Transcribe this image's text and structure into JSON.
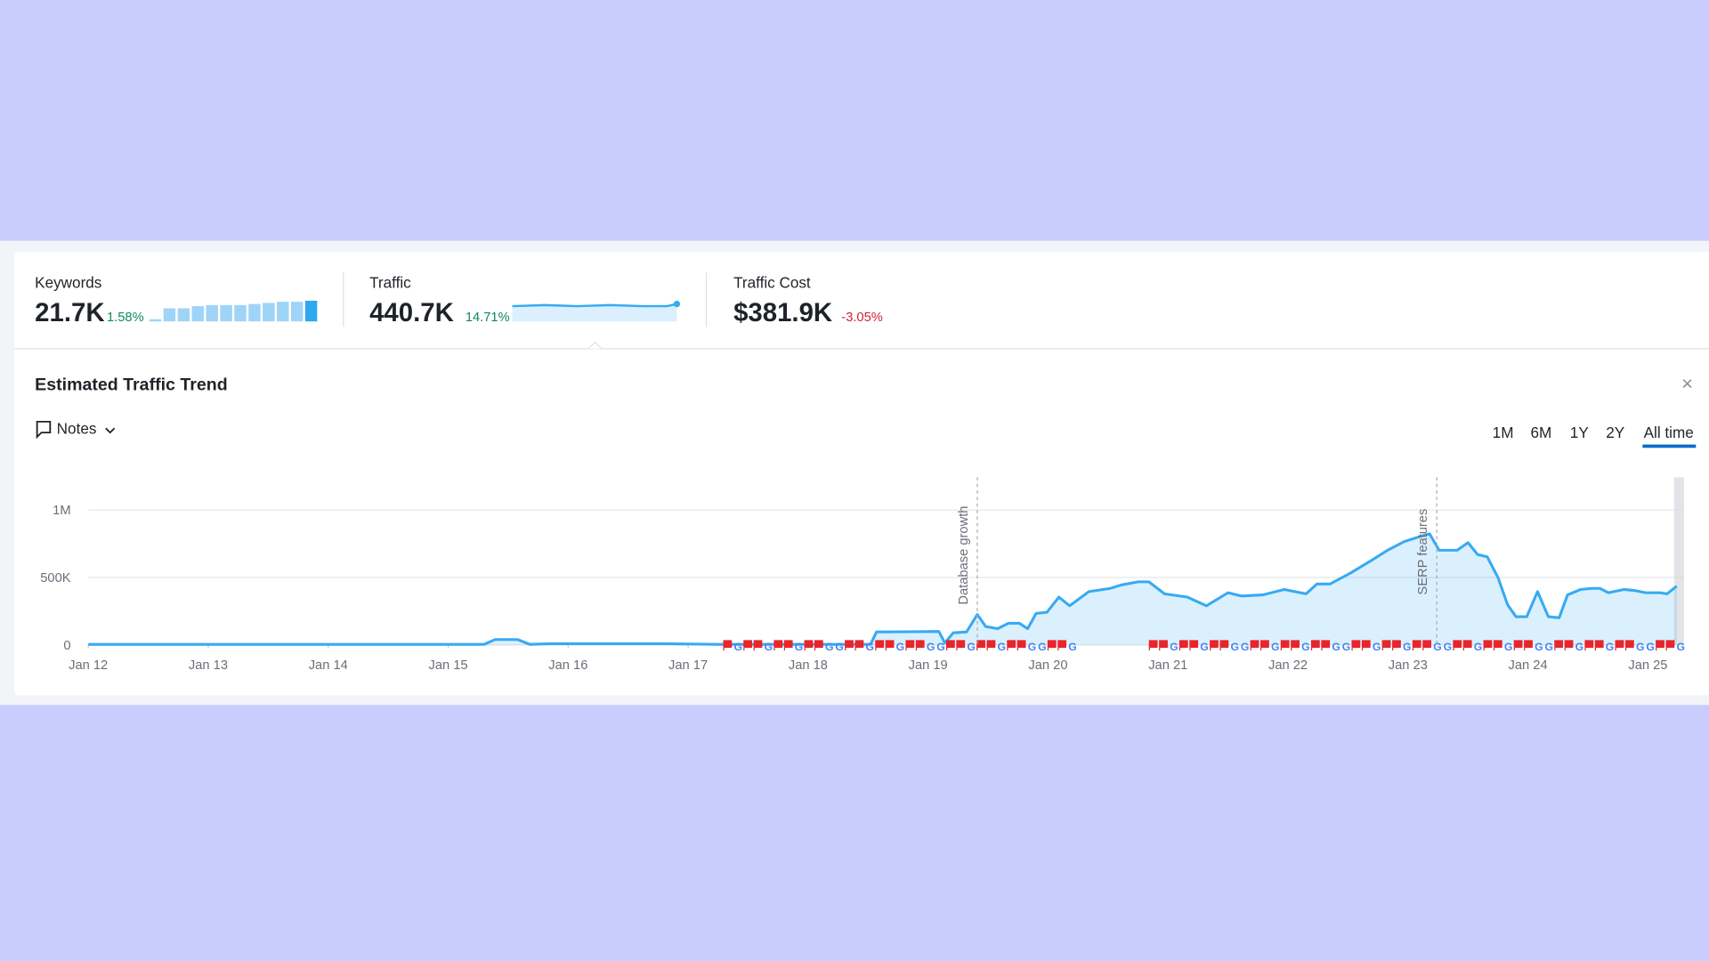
{
  "metrics": [
    {
      "label": "Keywords",
      "value": "21.7K",
      "change": "1.58%"
    },
    {
      "label": "Traffic",
      "value": "440.7K",
      "change": "14.71%"
    },
    {
      "label": "Traffic Cost",
      "value": "$381.9K",
      "change": "-3.05%"
    }
  ],
  "panel": {
    "title": "Estimated Traffic Trend",
    "notes": "Notes",
    "close": "×",
    "ranges": [
      "1M",
      "6M",
      "1Y",
      "2Y",
      "All time"
    ]
  },
  "chart_data": {
    "type": "area",
    "grid": true,
    "xlim": [
      2012,
      2025.3
    ],
    "ylim": [
      0,
      1000000
    ],
    "xticks": [
      {
        "value": 2012,
        "label": "Jan 12"
      },
      {
        "value": 2013,
        "label": "Jan 13"
      },
      {
        "value": 2014,
        "label": "Jan 14"
      },
      {
        "value": 2015,
        "label": "Jan 15"
      },
      {
        "value": 2016,
        "label": "Jan 16"
      },
      {
        "value": 2017,
        "label": "Jan 17"
      },
      {
        "value": 2018,
        "label": "Jan 18"
      },
      {
        "value": 2019,
        "label": "Jan 19"
      },
      {
        "value": 2020,
        "label": "Jan 20"
      },
      {
        "value": 2021,
        "label": "Jan 21"
      },
      {
        "value": 2022,
        "label": "Jan 22"
      },
      {
        "value": 2023,
        "label": "Jan 23"
      },
      {
        "value": 2024,
        "label": "Jan 24"
      },
      {
        "value": 2025,
        "label": "Jan 25"
      }
    ],
    "yticks": [
      0,
      {
        "value": 500000,
        "label": "500K"
      },
      {
        "value": 1000000,
        "label": "1M"
      }
    ],
    "annotations": [
      {
        "text": "Database growth",
        "x": 2019.41
      },
      {
        "text": "SERP features",
        "x": 2023.24
      }
    ],
    "series": [
      {
        "color": "#36aaf3",
        "x": [
          2012.0,
          2015.3,
          2015.39,
          2015.58,
          2015.68,
          2015.85,
          2016.8,
          2017.25,
          2018.52,
          2018.57,
          2019.09,
          2019.14,
          2019.21,
          2019.32,
          2019.41,
          2019.48,
          2019.58,
          2019.67,
          2019.76,
          2019.83,
          2019.9,
          2019.99,
          2020.09,
          2020.18,
          2020.34,
          2020.52,
          2020.61,
          2020.75,
          2020.84,
          2020.97,
          2021.16,
          2021.32,
          2021.5,
          2021.61,
          2021.79,
          2021.97,
          2022.15,
          2022.24,
          2022.35,
          2022.52,
          2022.7,
          2022.83,
          2022.97,
          2023.11,
          2023.18,
          2023.26,
          2023.41,
          2023.5,
          2023.58,
          2023.66,
          2023.75,
          2023.83,
          2023.9,
          2023.99,
          2024.08,
          2024.17,
          2024.26,
          2024.33,
          2024.44,
          2024.53,
          2024.6,
          2024.67,
          2024.8,
          2024.89,
          2024.98,
          2025.1,
          2025.16,
          2025.24
        ],
        "values": [
          5000,
          5000,
          40000,
          40000,
          5000,
          10000,
          10000,
          5000,
          5000,
          97000,
          100000,
          15000,
          90000,
          97000,
          226000,
          137000,
          121000,
          161000,
          161000,
          121000,
          234000,
          242000,
          355000,
          290000,
          395000,
          419000,
          444000,
          468000,
          468000,
          379000,
          355000,
          290000,
          387000,
          363000,
          371000,
          411000,
          379000,
          452000,
          452000,
          532000,
          629000,
          702000,
          766000,
          806000,
          823000,
          702000,
          702000,
          758000,
          669000,
          653000,
          500000,
          298000,
          210000,
          210000,
          395000,
          210000,
          202000,
          371000,
          411000,
          419000,
          419000,
          387000,
          411000,
          403000,
          387000,
          387000,
          379000,
          436000
        ]
      }
    ]
  }
}
